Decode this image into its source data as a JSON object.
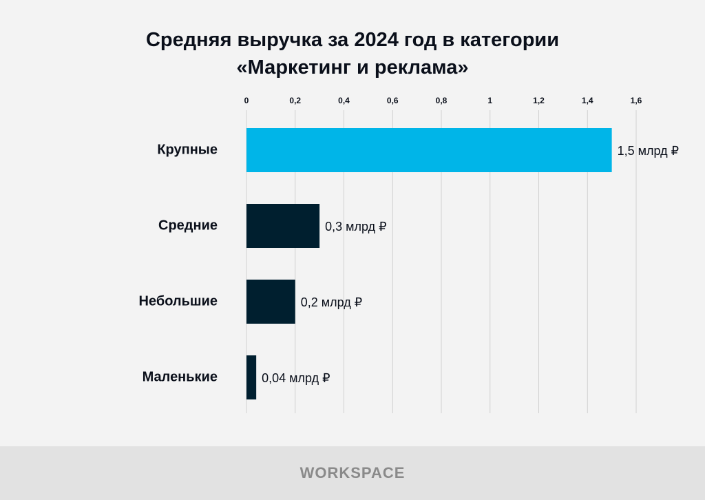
{
  "chart_data": {
    "type": "hbar",
    "title": "Средняя выручка за 2024 год в категории «Маркетинг и реклама»",
    "categories": [
      "Крупные",
      "Средние",
      "Небольшие",
      "Маленькие"
    ],
    "values": [
      1.5,
      0.3,
      0.2,
      0.04
    ],
    "value_labels": [
      "1,5 млрд ₽",
      "0,3 млрд ₽",
      "0,2 млрд ₽",
      "0,04 млрд ₽"
    ],
    "colors": [
      "#00b5e8",
      "#001f2f",
      "#001f2f",
      "#001f2f"
    ],
    "xlim": [
      0,
      1.6
    ],
    "xticks": [
      0,
      {
        "value": 0.2,
        "label": "0,2"
      },
      {
        "value": 0.4,
        "label": "0,4"
      },
      {
        "value": 0.6,
        "label": "0,6"
      },
      {
        "value": 0.8,
        "label": "0,8"
      },
      1,
      {
        "value": 1.2,
        "label": "1,2"
      },
      {
        "value": 1.4,
        "label": "1,4"
      },
      {
        "value": 1.6,
        "label": "1,6"
      }
    ],
    "grid": true
  },
  "footer": {
    "brand": "WORKSPACE"
  }
}
